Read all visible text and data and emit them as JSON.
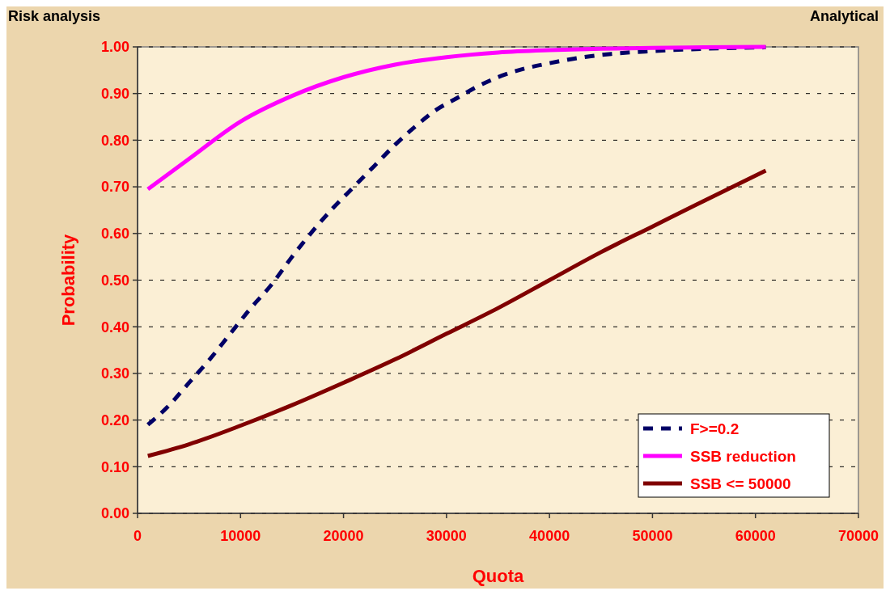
{
  "chart_data": {
    "type": "line",
    "title": "Risk analysis",
    "subtitle": "Analytical",
    "xlabel": "Quota",
    "ylabel": "Probability",
    "xlim": [
      0,
      70000
    ],
    "xticks": [
      0,
      10000,
      20000,
      30000,
      40000,
      50000,
      60000,
      70000
    ],
    "ylim": [
      0,
      1
    ],
    "yticks": [
      {
        "value": 0,
        "label": "0.00"
      },
      {
        "value": 0.1,
        "label": "0.10"
      },
      {
        "value": 0.2,
        "label": "0.20"
      },
      {
        "value": 0.3,
        "label": "0.30"
      },
      {
        "value": 0.4,
        "label": "0.40"
      },
      {
        "value": 0.5,
        "label": "0.50"
      },
      {
        "value": 0.6,
        "label": "0.60"
      },
      {
        "value": 0.7,
        "label": "0.70"
      },
      {
        "value": 0.8,
        "label": "0.80"
      },
      {
        "value": 0.9,
        "label": "0.90"
      },
      {
        "value": 1,
        "label": "1.00"
      }
    ],
    "grid": "y",
    "legend": "bottom right",
    "marker": "none",
    "series": [
      {
        "name": "F>=0.2",
        "color": "#000066",
        "line_style": "dashed",
        "x": [
          1000,
          3000,
          5000,
          7000,
          9000,
          11000,
          13000,
          15000,
          17000,
          19000,
          21000,
          23000,
          25000,
          27000,
          29000,
          31000,
          33000,
          35000,
          37000,
          40000,
          43000,
          46000,
          50000,
          55000,
          61000
        ],
        "values": [
          0.19,
          0.23,
          0.28,
          0.33,
          0.385,
          0.44,
          0.49,
          0.55,
          0.605,
          0.655,
          0.7,
          0.745,
          0.79,
          0.83,
          0.865,
          0.89,
          0.915,
          0.935,
          0.95,
          0.965,
          0.977,
          0.985,
          0.991,
          0.996,
          0.999
        ]
      },
      {
        "name": "SSB reduction",
        "color": "#ff00ff",
        "line_style": "solid",
        "x": [
          1000,
          5000,
          10000,
          15000,
          20000,
          25000,
          30000,
          35000,
          40000,
          45000,
          50000,
          55000,
          61000
        ],
        "values": [
          0.695,
          0.76,
          0.84,
          0.895,
          0.935,
          0.962,
          0.978,
          0.988,
          0.993,
          0.996,
          0.998,
          0.999,
          1.0
        ]
      },
      {
        "name": "SSB <= 50000",
        "color": "#800000",
        "line_style": "solid",
        "x": [
          1000,
          5000,
          10000,
          15000,
          20000,
          25000,
          30000,
          35000,
          40000,
          45000,
          50000,
          55000,
          61000
        ],
        "values": [
          0.123,
          0.148,
          0.188,
          0.232,
          0.28,
          0.33,
          0.385,
          0.44,
          0.5,
          0.56,
          0.615,
          0.67,
          0.735
        ]
      }
    ]
  }
}
